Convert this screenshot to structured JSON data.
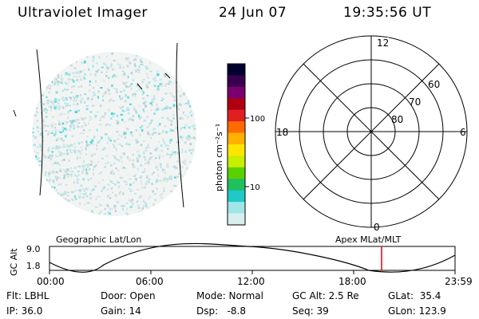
{
  "header": {
    "instrument": "Ultraviolet Imager",
    "date": "24 Jun 07",
    "time": "19:35:56 UT"
  },
  "colorbar": {
    "label": "photon cm⁻²s⁻¹",
    "ticks": [
      "100",
      "10"
    ],
    "colors": [
      "#000030",
      "#3a0050",
      "#7a0070",
      "#b00010",
      "#e02020",
      "#ff6a00",
      "#ffb000",
      "#ffe600",
      "#c8ee00",
      "#5ad000",
      "#20c060",
      "#20c8c8",
      "#a0e6e6",
      "#d8eeee"
    ]
  },
  "polar_plot": {
    "mlt_labels": {
      "top": "12",
      "left": "18",
      "right": "6",
      "bottom": "0"
    },
    "lat_labels": [
      "60",
      "70",
      "80"
    ]
  },
  "timeline": {
    "left_title": "Geographic Lat/Lon",
    "right_title": "Apex MLat/MLT",
    "yaxis_label": "GC Alt",
    "ytick_top": "9.0",
    "ytick_bottom": "1.8",
    "xticks": [
      "00:00",
      "06:00",
      "12:00",
      "18:00",
      "23:59"
    ],
    "current_marker_color": "#e00000"
  },
  "status": {
    "flt": "Flt: LBHL",
    "door": "Door: Open",
    "mode": "Mode: Normal",
    "gc_alt": "GC Alt: 2.5 Re",
    "glat": "GLat:  35.4",
    "ip": "IP: 36.0",
    "gain": "Gain: 14",
    "dsp": "Dsp:   -8.8",
    "seq": "Seq: 39",
    "glon": "GLon: 123.9"
  }
}
